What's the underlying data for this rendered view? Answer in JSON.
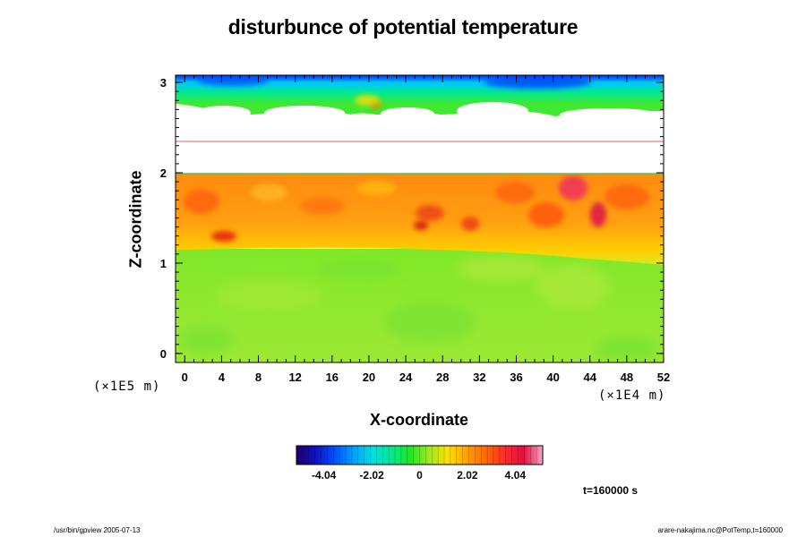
{
  "colors": {
    "scale": [
      "#20006a",
      "#1010c0",
      "#0050ff",
      "#00a0ff",
      "#00e0e0",
      "#00e890",
      "#20e820",
      "#a0e820",
      "#ffe000",
      "#ffa000",
      "#ff6a00",
      "#ff2a2a",
      "#e01040",
      "#f6a8c8"
    ]
  },
  "chart_data": {
    "type": "heatmap",
    "title": "disturbunce of potential temperature",
    "xlabel": "X-coordinate",
    "ylabel": "Z-coordinate",
    "x_scale_label": "(×1E4 m)",
    "y_scale_label": "(×1E5 m)",
    "xlim": [
      -1,
      52
    ],
    "ylim": [
      -0.1,
      3.08
    ],
    "x_ticks": [
      "0",
      "4",
      "8",
      "12",
      "16",
      "20",
      "24",
      "28",
      "32",
      "36",
      "40",
      "44",
      "48",
      "52"
    ],
    "y_ticks": [
      "0",
      "1",
      "2",
      "3"
    ],
    "colorbar": {
      "range": [
        -5.2,
        5.2
      ],
      "ticks": [
        "-4.04",
        "-2.02",
        "0",
        "2.02",
        "4.04"
      ]
    },
    "regions": [
      {
        "z_range": [
          -0.1,
          1.2
        ],
        "level": "~1",
        "description_color": "green"
      },
      {
        "z_range": [
          1.2,
          2.0
        ],
        "level": "~3",
        "description_color": "orange"
      },
      {
        "z_range": [
          2.0,
          2.6
        ],
        "level": "undefined",
        "description_color": "white"
      },
      {
        "z_range": [
          2.6,
          3.08
        ],
        "level": "~-2 to 0",
        "description_color": "green-cyan-blue"
      }
    ],
    "time_label": "t=160000 s"
  },
  "footer": {
    "left": "/usr/bin/gpview 2005-07-13",
    "right": "arare-nakajima.nc@PotTemp,t=160000"
  }
}
